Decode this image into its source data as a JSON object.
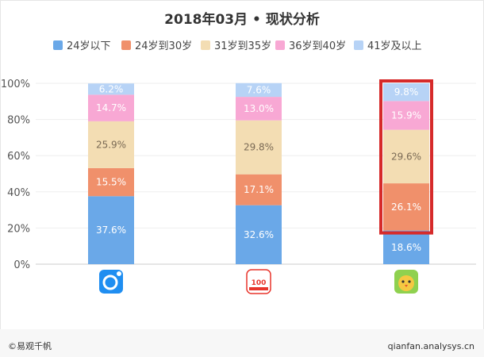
{
  "chart_data": {
    "type": "bar",
    "stacked": true,
    "title": "2018年03月 • 现状分析",
    "categories": [
      "",
      "",
      ""
    ],
    "series": [
      {
        "name": "24岁以下",
        "color": "#6aa8e8",
        "values": [
          37.6,
          32.6,
          18.6
        ],
        "labels": [
          "37.6%",
          "32.6%",
          "18.6%"
        ]
      },
      {
        "name": "24岁到30岁",
        "color": "#f0906b",
        "values": [
          15.5,
          17.1,
          26.1
        ],
        "labels": [
          "15.5%",
          "17.1%",
          "26.1%"
        ]
      },
      {
        "name": "31岁到35岁",
        "color": "#f3ddb3",
        "values": [
          25.9,
          29.8,
          29.6
        ],
        "labels": [
          "25.9%",
          "29.8%",
          "29.6%"
        ]
      },
      {
        "name": "36岁到40岁",
        "color": "#f8a8d4",
        "values": [
          14.7,
          13.0,
          15.9
        ],
        "labels": [
          "14.7%",
          "13.0%",
          "15.9%"
        ]
      },
      {
        "name": "41岁及以上",
        "color": "#b7d3f6",
        "values": [
          6.2,
          7.6,
          9.8
        ],
        "labels": [
          "6.2%",
          "7.6%",
          "9.8%"
        ]
      }
    ],
    "ylim": [
      0,
      100
    ],
    "yticks": [
      "0%",
      "20%",
      "40%",
      "60%",
      "80%",
      "100%"
    ],
    "legend_position": "top",
    "highlight": {
      "category_index": 2,
      "color": "#d62a2a"
    }
  },
  "category_icons": [
    {
      "name": "app-icon-1",
      "color": "#1f8ef1"
    },
    {
      "name": "app-icon-2",
      "text": "100",
      "color": "#e8352c"
    },
    {
      "name": "app-icon-3",
      "color": "#f5c842"
    }
  ],
  "footer": {
    "left": "©易观千帆",
    "right": "qianfan.analysys.cn"
  }
}
